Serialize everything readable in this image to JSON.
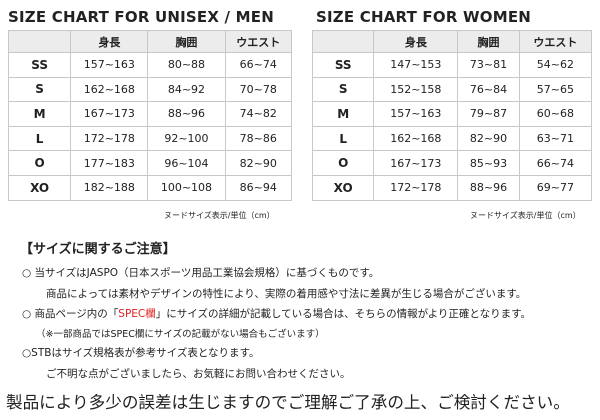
{
  "tables": [
    {
      "title": "SIZE CHART FOR UNISEX / MEN",
      "headers": [
        "身長",
        "胸囲",
        "ウエスト"
      ],
      "rows": [
        {
          "size": "SS",
          "cells": [
            "157~163",
            "80~88",
            "66~74"
          ]
        },
        {
          "size": "S",
          "cells": [
            "162~168",
            "84~92",
            "70~78"
          ]
        },
        {
          "size": "M",
          "cells": [
            "167~173",
            "88~96",
            "74~82"
          ]
        },
        {
          "size": "L",
          "cells": [
            "172~178",
            "92~100",
            "78~86"
          ]
        },
        {
          "size": "O",
          "cells": [
            "177~183",
            "96~104",
            "82~90"
          ]
        },
        {
          "size": "XO",
          "cells": [
            "182~188",
            "100~108",
            "86~94"
          ]
        }
      ],
      "unit": "ヌードサイズ表示/単位（cm）"
    },
    {
      "title": "SIZE CHART FOR WOMEN",
      "headers": [
        "身長",
        "胸囲",
        "ウエスト"
      ],
      "rows": [
        {
          "size": "SS",
          "cells": [
            "147~153",
            "73~81",
            "54~62"
          ]
        },
        {
          "size": "S",
          "cells": [
            "152~158",
            "76~84",
            "57~65"
          ]
        },
        {
          "size": "M",
          "cells": [
            "157~163",
            "79~87",
            "60~68"
          ]
        },
        {
          "size": "L",
          "cells": [
            "162~168",
            "82~90",
            "63~71"
          ]
        },
        {
          "size": "O",
          "cells": [
            "167~173",
            "85~93",
            "66~74"
          ]
        },
        {
          "size": "XO",
          "cells": [
            "172~178",
            "88~96",
            "69~77"
          ]
        }
      ],
      "unit": "ヌードサイズ表示/単位（cm）"
    }
  ],
  "notes": {
    "heading": "【サイズに関するご注意】",
    "line1": "○ 当サイズはJASPO（日本スポーツ用品工業協会規格）に基づくものです。",
    "line2": "商品によっては素材やデザインの特性により、実際の着用感や寸法に差異が生じる場合がございます。",
    "line3_before": "○ 商品ページ内の「",
    "line3_highlight": "SPEC欄",
    "line3_after": "」にサイズの詳細が記載している場合は、そちらの情報がより正確となります。",
    "line4": "（※一部商品ではSPEC欄にサイズの記載がない場合もございます）",
    "line5": "○STBはサイズ規格表が参考サイズ表となります。",
    "line6": "ご不明な点がございましたら、お気軽にお問い合わせください。"
  },
  "footer": "製品により多少の誤差は生じますのでご理解ご了承の上、ご検討ください。"
}
